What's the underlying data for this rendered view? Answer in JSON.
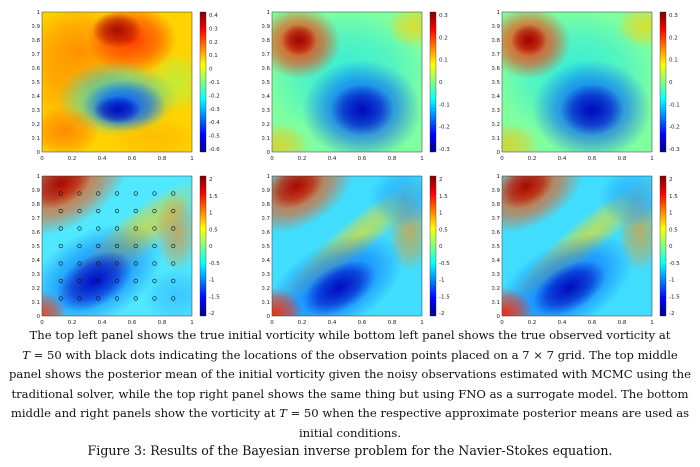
{
  "figure": {
    "label": "Figure 3: Results of the Bayesian inverse problem for the Navier-Stokes equation.",
    "caption": {
      "part1": "The top left panel shows the true initial vorticity while bottom left panel shows the true observed vorticity at",
      "t_symbol": "T",
      "part2": " = 50 with black dots indicating the locations of the observation points placed on a 7 × 7 grid. The top middle panel shows the posterior mean of the initial vorticity given the noisy observations estimated with MCMC using the traditional solver, while the top right panel shows the same thing but using FNO as a surrogate model. The bottom middle and right panels show the vorticity at ",
      "part3": " = 50 when the respective approximate posterior means are used as initial conditions."
    }
  },
  "axis_ticks": [
    "0",
    "0.1",
    "0.2",
    "0.3",
    "0.4",
    "0.5",
    "0.6",
    "0.7",
    "0.8",
    "0.9",
    "1"
  ],
  "x_ticks": [
    "0",
    "0.2",
    "0.4",
    "0.6",
    "0.8",
    "1"
  ],
  "panels": [
    {
      "id": "top-left",
      "colorbar_ticks": [
        "0.4",
        "0.3",
        "0.2",
        "0.1",
        "0",
        "-0.1",
        "-0.2",
        "-0.3",
        "-0.4",
        "-0.5",
        "-0.6"
      ]
    },
    {
      "id": "top-middle",
      "colorbar_ticks": [
        "0.3",
        "0.2",
        "0.1",
        "0",
        "-0.1",
        "-0.2",
        "-0.3"
      ]
    },
    {
      "id": "top-right",
      "colorbar_ticks": [
        "0.3",
        "0.2",
        "0.1",
        "0",
        "-0.1",
        "-0.2",
        "-0.3"
      ]
    },
    {
      "id": "bottom-left",
      "colorbar_ticks": [
        "2",
        "1.5",
        "1",
        "0.5",
        "0",
        "-0.5",
        "-1",
        "-1.5",
        "-2"
      ],
      "observation_grid": "7 × 7"
    },
    {
      "id": "bottom-middle",
      "colorbar_ticks": [
        "2",
        "1.5",
        "1",
        "0.5",
        "0",
        "-0.5",
        "-1",
        "-1.5",
        "-2"
      ]
    },
    {
      "id": "bottom-right",
      "colorbar_ticks": [
        "2",
        "1.5",
        "1",
        "0.5",
        "0",
        "-0.5",
        "-1",
        "-1.5",
        "-2"
      ]
    }
  ],
  "colors": {
    "jet": [
      "#00008f",
      "#0000ff",
      "#007fff",
      "#00ffff",
      "#7fff7f",
      "#ffff00",
      "#ff7f00",
      "#ff0000",
      "#7f0000"
    ]
  }
}
